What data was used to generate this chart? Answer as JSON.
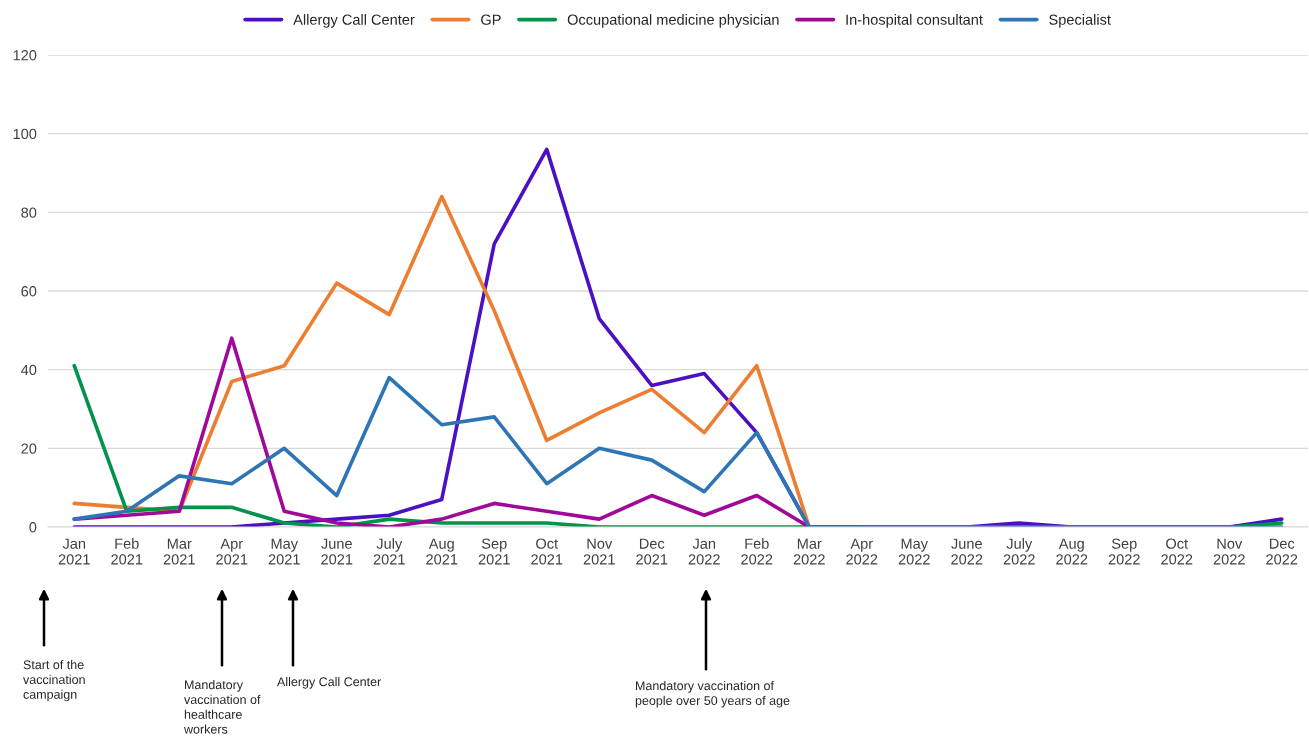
{
  "chart_data": {
    "type": "line",
    "categories": [
      "Jan\n2021",
      "Feb\n2021",
      "Mar\n2021",
      "Apr\n2021",
      "May\n2021",
      "June\n2021",
      "July\n2021",
      "Aug\n2021",
      "Sep\n2021",
      "Oct\n2021",
      "Nov\n2021",
      "Dec\n2021",
      "Jan\n2022",
      "Feb\n2022",
      "Mar\n2022",
      "Apr\n2022",
      "May\n2022",
      "June\n2022",
      "July\n2022",
      "Aug\n2022",
      "Sep\n2022",
      "Oct\n2022",
      "Nov\n2022",
      "Dec\n2022"
    ],
    "series": [
      {
        "name": "Allergy Call Center",
        "color": "#4b10c4",
        "values": [
          0,
          0,
          0,
          0,
          1,
          2,
          3,
          7,
          72,
          96,
          53,
          36,
          39,
          24,
          0,
          0,
          0,
          0,
          1,
          0,
          0,
          0,
          0,
          2
        ]
      },
      {
        "name": "GP",
        "color": "#ed7d31",
        "values": [
          6,
          5,
          4,
          37,
          41,
          62,
          54,
          84,
          55,
          22,
          29,
          35,
          24,
          41,
          0,
          0,
          null,
          null,
          null,
          null,
          null,
          null,
          null,
          null
        ]
      },
      {
        "name": "Occupational medicine physician",
        "color": "#00944a",
        "values": [
          41,
          4,
          5,
          5,
          1,
          0,
          2,
          1,
          1,
          1,
          0,
          0,
          0,
          0,
          0,
          0,
          0,
          0,
          0,
          0,
          0,
          0,
          0,
          1
        ]
      },
      {
        "name": "In-hospital consultant",
        "color": "#a0089a",
        "values": [
          2,
          3,
          4,
          48,
          4,
          1,
          0,
          2,
          6,
          4,
          2,
          8,
          3,
          8,
          0,
          0,
          null,
          null,
          null,
          null,
          null,
          null,
          null,
          null
        ]
      },
      {
        "name": "Specialist",
        "color": "#2e75b6",
        "values": [
          2,
          4,
          13,
          11,
          20,
          8,
          38,
          26,
          28,
          11,
          20,
          17,
          9,
          24,
          0,
          0,
          0,
          0,
          0,
          0,
          0,
          0,
          0,
          0
        ]
      }
    ],
    "ylim": [
      0,
      120
    ],
    "yticks": [
      0,
      20,
      40,
      60,
      80,
      100,
      120
    ],
    "grid": "y",
    "legend": "top",
    "marker": "none",
    "line_style": "solid",
    "annotations": [
      "Start of the\nvaccination\ncampaign",
      "Mandatory\nvaccination of\nhealthcare\nworkers",
      "Allergy Call Center",
      "Mandatory vaccination of\npeople over 50 years of age"
    ]
  }
}
